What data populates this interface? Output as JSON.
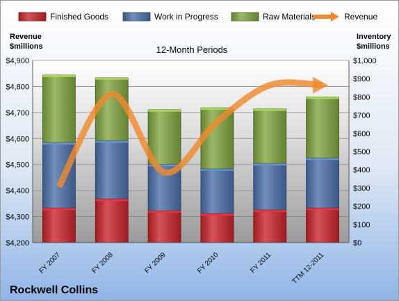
{
  "chart_data": {
    "type": "bar",
    "stacked": true,
    "title": "12-Month Periods",
    "footer_label": "Rockwell Collins",
    "left_axis_title": [
      "Revenue",
      "$millions"
    ],
    "right_axis_title": [
      "Inventory",
      "$millions"
    ],
    "categories": [
      "FY 2007",
      "FY 2008",
      "FY 2009",
      "FY 2010",
      "FY 2011",
      "TTM 12-2011"
    ],
    "series": [
      {
        "name": "Finished Goods",
        "axis": "right",
        "color": "#c8232a",
        "values": [
          190,
          240,
          175,
          160,
          180,
          190
        ]
      },
      {
        "name": "Work in Progress",
        "axis": "right",
        "color": "#4a6fa8",
        "values": [
          360,
          320,
          255,
          245,
          255,
          275
        ]
      },
      {
        "name": "Raw Materials",
        "axis": "right",
        "color": "#7fa33e",
        "values": [
          370,
          345,
          300,
          335,
          300,
          335
        ]
      }
    ],
    "line_series": {
      "name": "Revenue",
      "axis": "left",
      "color": "#f08a2c",
      "values": [
        4415,
        4770,
        4470,
        4665,
        4805,
        4805
      ]
    },
    "left_axis": {
      "min": 4200,
      "max": 4900,
      "step": 100,
      "tick_labels": [
        "$4,200",
        "$4,300",
        "$4,400",
        "$4,500",
        "$4,600",
        "$4,700",
        "$4,800",
        "$4,900"
      ]
    },
    "right_axis": {
      "min": 0,
      "max": 1000,
      "step": 100,
      "tick_labels": [
        "$0",
        "$100",
        "$200",
        "$300",
        "$400",
        "$500",
        "$600",
        "$700",
        "$800",
        "$900",
        "$1,000"
      ]
    },
    "grid": true,
    "legend_position": "top"
  }
}
